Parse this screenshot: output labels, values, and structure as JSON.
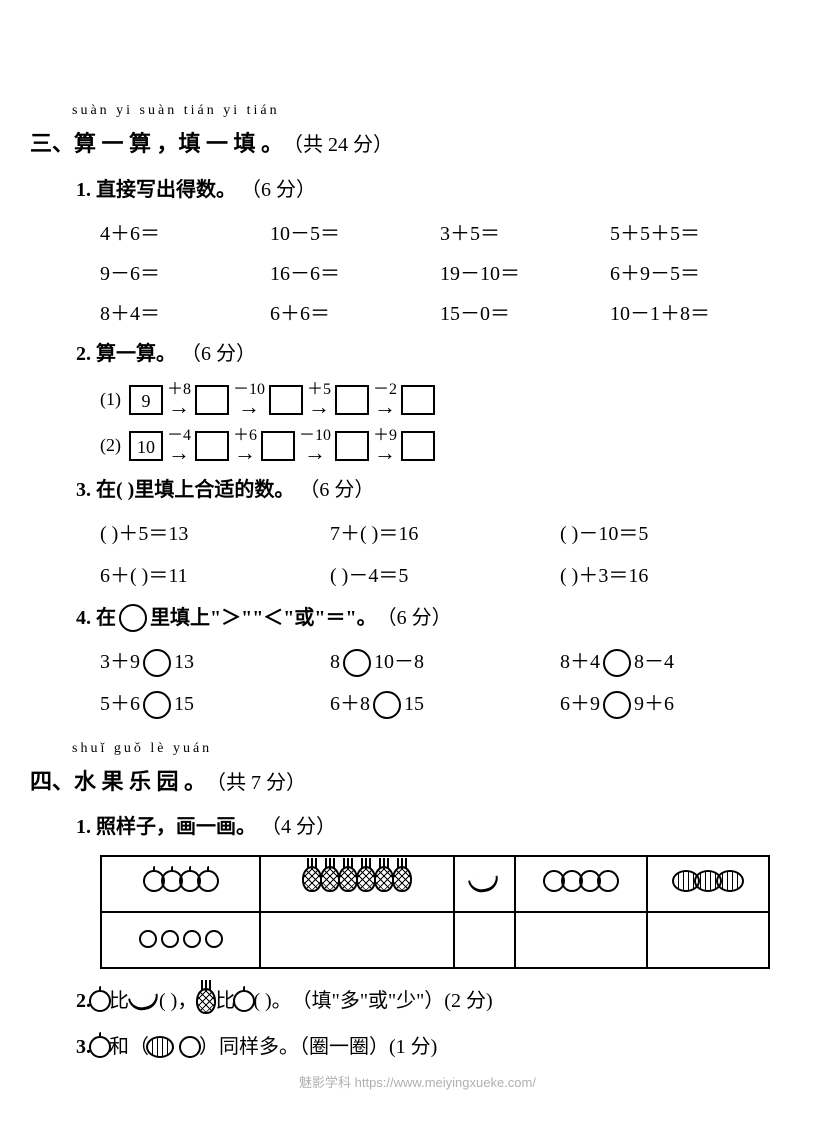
{
  "section3": {
    "pinyin": "suàn  yi  suàn     tián  yi  tián",
    "num": "三、",
    "title": "算 一 算 ，填 一 填 。",
    "points": "（共 24 分）",
    "q1": {
      "label": "1. 直接写出得数。",
      "pts": "（6 分）",
      "items": [
        [
          "4＋6＝",
          "10－5＝",
          "3＋5＝",
          "5＋5＋5＝"
        ],
        [
          "9－6＝",
          "16－6＝",
          "19－10＝",
          "6＋9－5＝"
        ],
        [
          "8＋4＝",
          "6＋6＝",
          "15－0＝",
          "10－1＋8＝"
        ]
      ]
    },
    "q2": {
      "label": "2. 算一算。",
      "pts": "（6 分）",
      "chains": [
        {
          "idx": "(1)",
          "start": "9",
          "ops": [
            "＋8",
            "－10",
            "＋5",
            "－2"
          ]
        },
        {
          "idx": "(2)",
          "start": "10",
          "ops": [
            "－4",
            "＋6",
            "－10",
            "＋9"
          ]
        }
      ]
    },
    "q3": {
      "label": "3. 在(          )里填上合适的数。",
      "pts": "（6 分）",
      "rows": [
        [
          "(        )＋5＝13",
          "7＋(        )＝16",
          "(        )－10＝5"
        ],
        [
          "6＋(        )＝11",
          "(        )－4＝5",
          "(        )＋3＝16"
        ]
      ]
    },
    "q4": {
      "label_a": "4. 在",
      "label_b": "里填上\"＞\"\"＜\"或\"＝\"。",
      "pts": "（6 分）",
      "rows": [
        [
          {
            "l": "3＋9",
            "r": "13"
          },
          {
            "l": "8",
            "r": "10－8"
          },
          {
            "l": "8＋4",
            "r": "8－4"
          }
        ],
        [
          {
            "l": "5＋6",
            "r": "15"
          },
          {
            "l": "6＋8",
            "r": "15"
          },
          {
            "l": "6＋9",
            "r": "9＋6"
          }
        ]
      ]
    }
  },
  "section4": {
    "pinyin": "shuǐ  guǒ  lè  yuán",
    "num": "四、",
    "title": "水 果 乐 园 。",
    "points": "（共 7 分）",
    "q1": {
      "label": "1. 照样子，画一画。",
      "pts": "（4 分）"
    },
    "q2": {
      "num": "2. ",
      "a": " 比 ",
      "b": "(         )，",
      "c": " 比 ",
      "d": "(         )。",
      "hint": "（填\"多\"或\"少\"）(2 分)"
    },
    "q3": {
      "num": "3. ",
      "a": "和（",
      "b": "）同样多。（圈一圈）(1 分)"
    }
  },
  "watermark": "魅影学科 https://www.meiyingxueke.com/"
}
